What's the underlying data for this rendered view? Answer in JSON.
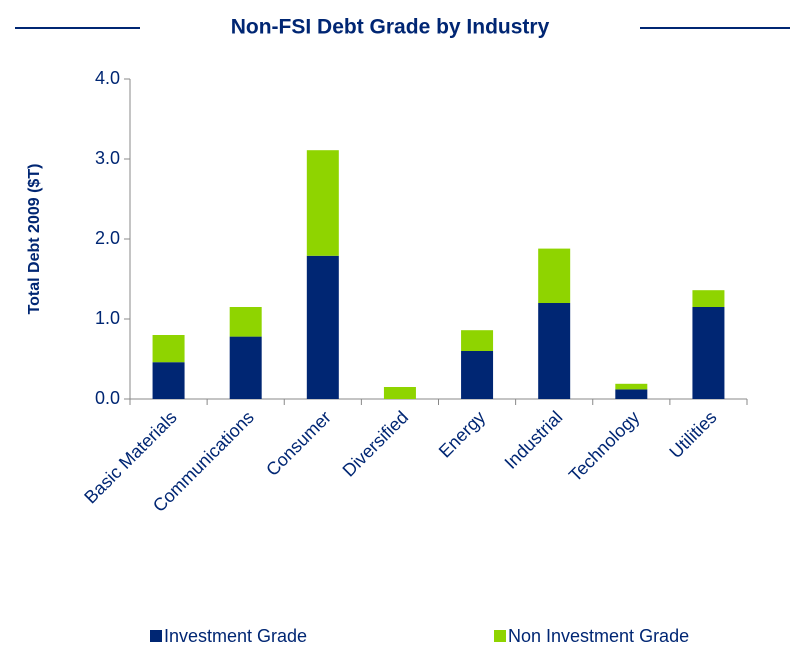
{
  "chart_data": {
    "type": "stacked_bar",
    "title": "Non-FSI Debt Grade by Industry",
    "y_label": "Total Debt 2009  ($T)",
    "categories": [
      "Basic Materials",
      "Communications",
      "Consumer",
      "Diversified",
      "Energy",
      "Industrial",
      "Technology",
      "Utilities"
    ],
    "series": [
      {
        "name": "Investment Grade",
        "color": "#002673",
        "values": [
          0.46,
          0.78,
          1.79,
          0,
          0.6,
          1.2,
          0.12,
          1.15
        ]
      },
      {
        "name": "Non Investment Grade",
        "color": "#8fd400",
        "values": [
          0.34,
          0.37,
          1.32,
          0.15,
          0.26,
          0.68,
          0.07,
          0.21
        ]
      }
    ],
    "ylim": [
      0,
      4
    ],
    "yticks": [
      {
        "value": 0,
        "label": "0.0"
      },
      {
        "value": 1,
        "label": "1.0"
      },
      {
        "value": 2,
        "label": "2.0"
      },
      {
        "value": 3,
        "label": "3.0"
      },
      {
        "value": 4,
        "label": "4.0"
      }
    ],
    "legend": "bottom"
  }
}
